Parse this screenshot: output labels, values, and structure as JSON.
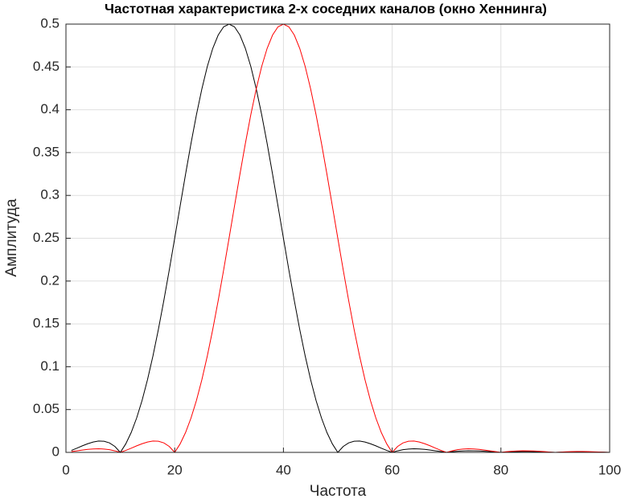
{
  "chart_data": {
    "type": "line",
    "title": "Частотная характеристика 2-х соседних каналов (окно Хеннинга)",
    "xlabel": "Частота",
    "ylabel": "Амплитуда",
    "x": [
      1,
      2,
      3,
      4,
      5,
      6,
      7,
      8,
      9,
      10,
      11,
      12,
      13,
      14,
      15,
      16,
      17,
      18,
      19,
      20,
      21,
      22,
      23,
      24,
      25,
      26,
      27,
      28,
      29,
      30,
      31,
      32,
      33,
      34,
      35,
      36,
      37,
      38,
      39,
      40,
      41,
      42,
      43,
      44,
      45,
      46,
      47,
      48,
      49,
      50,
      51,
      52,
      53,
      54,
      55,
      56,
      57,
      58,
      59,
      60,
      61,
      62,
      63,
      64,
      65,
      66,
      67,
      68,
      69,
      70,
      71,
      72,
      73,
      74,
      75,
      76,
      77,
      78,
      79,
      80,
      81,
      82,
      83,
      84,
      85,
      86,
      87,
      88,
      89,
      90,
      91,
      92,
      93,
      94,
      95,
      96,
      97,
      98,
      99,
      100
    ],
    "series": [
      {
        "color": "#000000",
        "values": [
          0.0023,
          0.0049,
          0.0076,
          0.0101,
          0.0121,
          0.0132,
          0.013,
          0.0111,
          0.0069,
          0,
          0.0099,
          0.0232,
          0.0401,
          0.0606,
          0.0849,
          0.1126,
          0.1435,
          0.1772,
          0.2129,
          0.25,
          0.2876,
          0.3248,
          0.3607,
          0.3942,
          0.4244,
          0.4505,
          0.4716,
          0.4872,
          0.4968,
          0.5,
          0.4968,
          0.4872,
          0.4716,
          0.4505,
          0.4244,
          0.3942,
          0.3607,
          0.3248,
          0.2876,
          0.25,
          0.2129,
          0.1772,
          0.1435,
          0.1126,
          0.0849,
          0.0606,
          0.0401,
          0.0232,
          0.0099,
          0,
          0.0069,
          0.0111,
          0.013,
          0.0132,
          0.0121,
          0.0101,
          0.0076,
          0.0049,
          0.0023,
          0,
          0.0018,
          0.0032,
          0.0039,
          0.0042,
          0.004,
          0.0035,
          0.0027,
          0.0018,
          0.0009,
          0,
          0.0008,
          0.0013,
          0.0017,
          0.0019,
          0.0018,
          0.0016,
          0.0013,
          0.0009,
          0.0004,
          0,
          0.0004,
          0.0007,
          0.0009,
          0.001,
          0.001,
          0.0009,
          0.0007,
          0.0005,
          0.0002,
          0,
          0.0002,
          0.0004,
          0.0005,
          0.0006,
          0.0006,
          0.0005,
          0.0004,
          0.0003,
          0.0002,
          0
        ]
      },
      {
        "color": "#ff0000",
        "values": [
          0.0009,
          0.0018,
          0.0027,
          0.0035,
          0.004,
          0.0042,
          0.0039,
          0.0032,
          0.0018,
          0,
          0.0023,
          0.0049,
          0.0076,
          0.0101,
          0.0121,
          0.0132,
          0.013,
          0.0111,
          0.0069,
          0,
          0.0099,
          0.0232,
          0.0401,
          0.0606,
          0.0849,
          0.1126,
          0.1435,
          0.1772,
          0.2129,
          0.25,
          0.2876,
          0.3248,
          0.3607,
          0.3942,
          0.4244,
          0.4505,
          0.4716,
          0.4872,
          0.4968,
          0.5,
          0.4968,
          0.4872,
          0.4716,
          0.4505,
          0.4244,
          0.3942,
          0.3607,
          0.3248,
          0.2876,
          0.25,
          0.2129,
          0.1772,
          0.1435,
          0.1126,
          0.0849,
          0.0606,
          0.0401,
          0.0232,
          0.0099,
          0,
          0.0069,
          0.0111,
          0.013,
          0.0132,
          0.0121,
          0.0101,
          0.0076,
          0.0049,
          0.0023,
          0,
          0.0018,
          0.0032,
          0.0039,
          0.0042,
          0.004,
          0.0035,
          0.0027,
          0.0018,
          0.0009,
          0,
          0.0008,
          0.0013,
          0.0017,
          0.0019,
          0.0018,
          0.0016,
          0.0013,
          0.0009,
          0.0004,
          0,
          0.0004,
          0.0007,
          0.0009,
          0.001,
          0.001,
          0.0009,
          0.0007,
          0.0005,
          0.0002,
          0
        ]
      }
    ],
    "xlim": [
      0,
      100
    ],
    "xticks": [
      0,
      20,
      40,
      60,
      80,
      100
    ],
    "ylim": [
      0,
      0.5
    ],
    "yticks": [
      0,
      0.05,
      0.1,
      0.15,
      0.2,
      0.25,
      0.3,
      0.35,
      0.4,
      0.45,
      0.5
    ],
    "grid": true
  }
}
